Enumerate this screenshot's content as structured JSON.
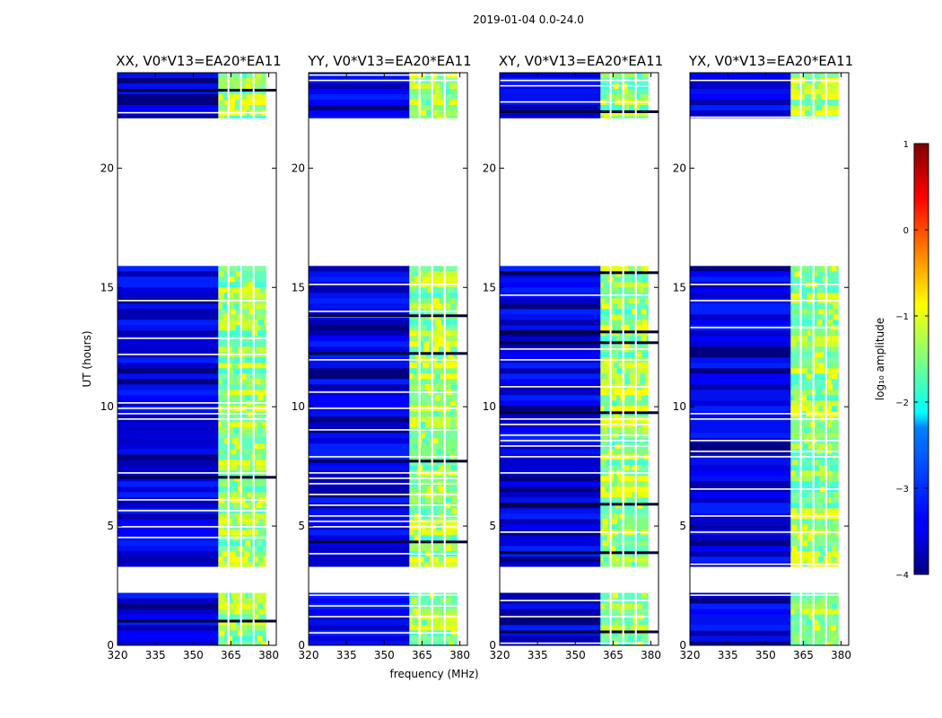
{
  "chart_data": {
    "type": "heatmap",
    "suptitle": "2019-01-04 0.0-24.0",
    "xlabel": "frequency (MHz)",
    "ylabel": "UT (hours)",
    "xlim": [
      320,
      383
    ],
    "ylim": [
      0,
      24
    ],
    "xticks": [
      320,
      335,
      350,
      365,
      380
    ],
    "yticks": [
      0,
      5,
      10,
      15,
      20
    ],
    "panels": [
      {
        "title": "XX, V0*V13=EA20*EA11"
      },
      {
        "title": "YY, V0*V13=EA20*EA11"
      },
      {
        "title": "XY, V0*V13=EA20*EA11"
      },
      {
        "title": "YX, V0*V13=EA20*EA11"
      }
    ],
    "data_ranges_hours": [
      [
        0,
        2.2
      ],
      [
        3.3,
        15.9
      ],
      [
        22.1,
        24.0
      ]
    ],
    "high_band_mhz": [
      360,
      379
    ],
    "flagged_channels_mhz": [
      364,
      369,
      374
    ],
    "colorbar": {
      "label": "log₁₀ amplitude",
      "ticks": [
        "1",
        "0",
        "−1",
        "−2",
        "−3",
        "−4"
      ],
      "range": [
        -4,
        1
      ],
      "colormap": "jet"
    }
  }
}
